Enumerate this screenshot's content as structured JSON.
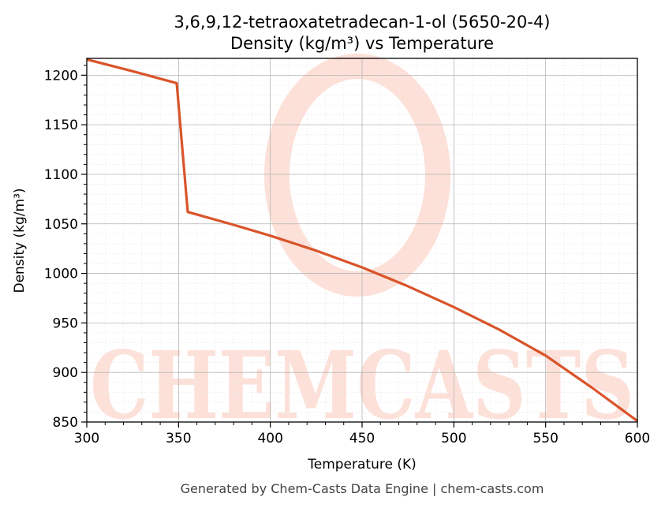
{
  "chart_data": {
    "type": "line",
    "title_line1": "3,6,9,12-tetraoxatetradecan-1-ol (5650-20-4)",
    "title_line2": "Density (kg/m³) vs Temperature",
    "xlabel": "Temperature (K)",
    "ylabel": "Density (kg/m³)",
    "xlim": [
      300,
      600
    ],
    "ylim": [
      850,
      1217
    ],
    "xticks": [
      300,
      350,
      400,
      450,
      500,
      550,
      600
    ],
    "yticks": [
      850,
      900,
      950,
      1000,
      1050,
      1100,
      1150,
      1200
    ],
    "grid": true,
    "series": [
      {
        "color": "#d9542a",
        "x": [
          300,
          325,
          349,
          355,
          380,
          400,
          425,
          450,
          475,
          500,
          525,
          550,
          575,
          600
        ],
        "y": [
          1216,
          1204,
          1192,
          1062,
          1049,
          1038,
          1023,
          1006,
          987,
          966,
          943,
          917,
          885,
          851
        ]
      }
    ]
  },
  "watermark": {
    "text": "CHEMCASTS",
    "color": "#fde0d8"
  },
  "footer": "Generated by Chem-Casts Data Engine | chem-casts.com"
}
